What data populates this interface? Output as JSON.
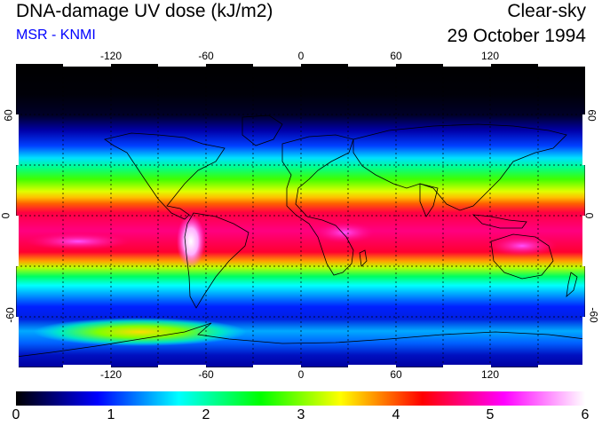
{
  "header": {
    "title": "DNA-damage UV dose (kJ/m2)",
    "source": "MSR - KNMI",
    "sky_condition": "Clear-sky",
    "date": "29 October 1994"
  },
  "colors": {
    "source_text": "#0000ff"
  },
  "map": {
    "projection": "equirectangular",
    "lon_range": [
      -180,
      180
    ],
    "lat_range": [
      -90,
      90
    ],
    "lon_ticks": [
      "-120",
      "-60",
      "0",
      "60",
      "120"
    ],
    "lat_ticks_left": [
      "60",
      "0",
      "-60"
    ],
    "lat_ticks_right": [
      "60",
      "0",
      "-60"
    ],
    "gridlines": "dashed, every 30 degrees"
  },
  "colorbar": {
    "min": 0,
    "max": 6,
    "labels": [
      "0",
      "1",
      "2",
      "3",
      "4",
      "5",
      "6"
    ],
    "colors": [
      "#000000",
      "#0000ff",
      "#00ffff",
      "#00ff00",
      "#ffff00",
      "#ff0000",
      "#ff00ff",
      "#ffffff"
    ]
  }
}
